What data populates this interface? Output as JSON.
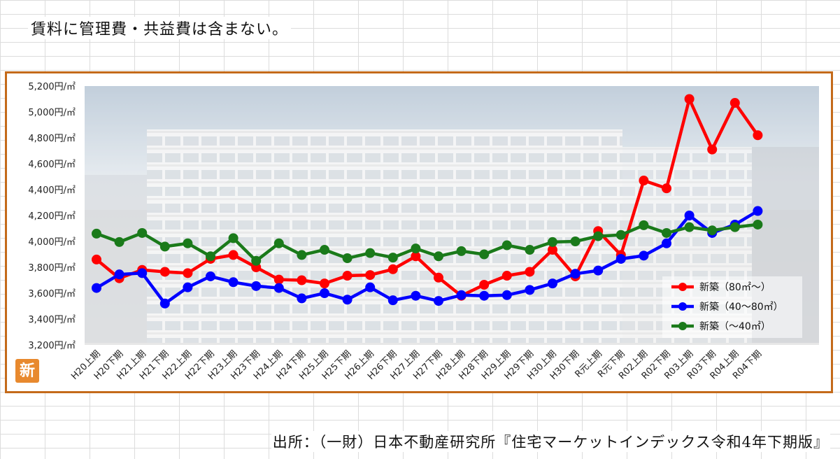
{
  "note": "賃料に管理費・共益費は含まない。",
  "source": "出所：（一財）日本不動産研究所『住宅マーケットインデックス令和4年下期版』",
  "badge": "新",
  "chart_data": {
    "type": "line",
    "title": "",
    "xlabel": "",
    "ylabel": "",
    "ylim": [
      3200,
      5200
    ],
    "ytick_step": 200,
    "ytick_labels": [
      "3,200円/㎡",
      "3,400円/㎡",
      "3,600円/㎡",
      "3,800円/㎡",
      "4,000円/㎡",
      "4,200円/㎡",
      "4,400円/㎡",
      "4,600円/㎡",
      "4,800円/㎡",
      "5,000円/㎡",
      "5,200円/㎡"
    ],
    "grid": false,
    "legend_position": "bottom-right",
    "categories": [
      "H20上期",
      "H20下期",
      "H21上期",
      "H21下期",
      "H22上期",
      "H22下期",
      "H23上期",
      "H23下期",
      "H24上期",
      "H24下期",
      "H25上期",
      "H25下期",
      "H26上期",
      "H26下期",
      "H27上期",
      "H27下期",
      "H28上期",
      "H28下期",
      "H29上期",
      "H29下期",
      "H30上期",
      "H30下期",
      "R元上期",
      "R元下期",
      "R02上期",
      "R02下期",
      "R03上期",
      "R03下期",
      "R04上期",
      "R04下期"
    ],
    "series": [
      {
        "name": "新築（80㎡～）",
        "color": "#ff0000",
        "values": [
          3860,
          3715,
          3780,
          3765,
          3755,
          3865,
          3895,
          3800,
          3705,
          3700,
          3675,
          3735,
          3740,
          3785,
          3885,
          3720,
          3580,
          3665,
          3735,
          3765,
          3935,
          3730,
          4080,
          3895,
          4470,
          4410,
          5100,
          4710,
          5070,
          4820
        ]
      },
      {
        "name": "新築（40～80㎡）",
        "color": "#0000ff",
        "values": [
          3640,
          3745,
          3755,
          3520,
          3645,
          3730,
          3685,
          3655,
          3640,
          3560,
          3600,
          3550,
          3645,
          3545,
          3580,
          3540,
          3585,
          3580,
          3585,
          3625,
          3675,
          3750,
          3775,
          3865,
          3890,
          3985,
          4200,
          4065,
          4130,
          4235
        ]
      },
      {
        "name": "新築（～40㎡）",
        "color": "#1a7a1a",
        "values": [
          4060,
          3995,
          4065,
          3960,
          3985,
          3885,
          4025,
          3850,
          3985,
          3895,
          3935,
          3870,
          3910,
          3875,
          3945,
          3885,
          3925,
          3900,
          3970,
          3935,
          3995,
          4000,
          4040,
          4050,
          4125,
          4065,
          4110,
          4085,
          4110,
          4130
        ]
      }
    ]
  }
}
